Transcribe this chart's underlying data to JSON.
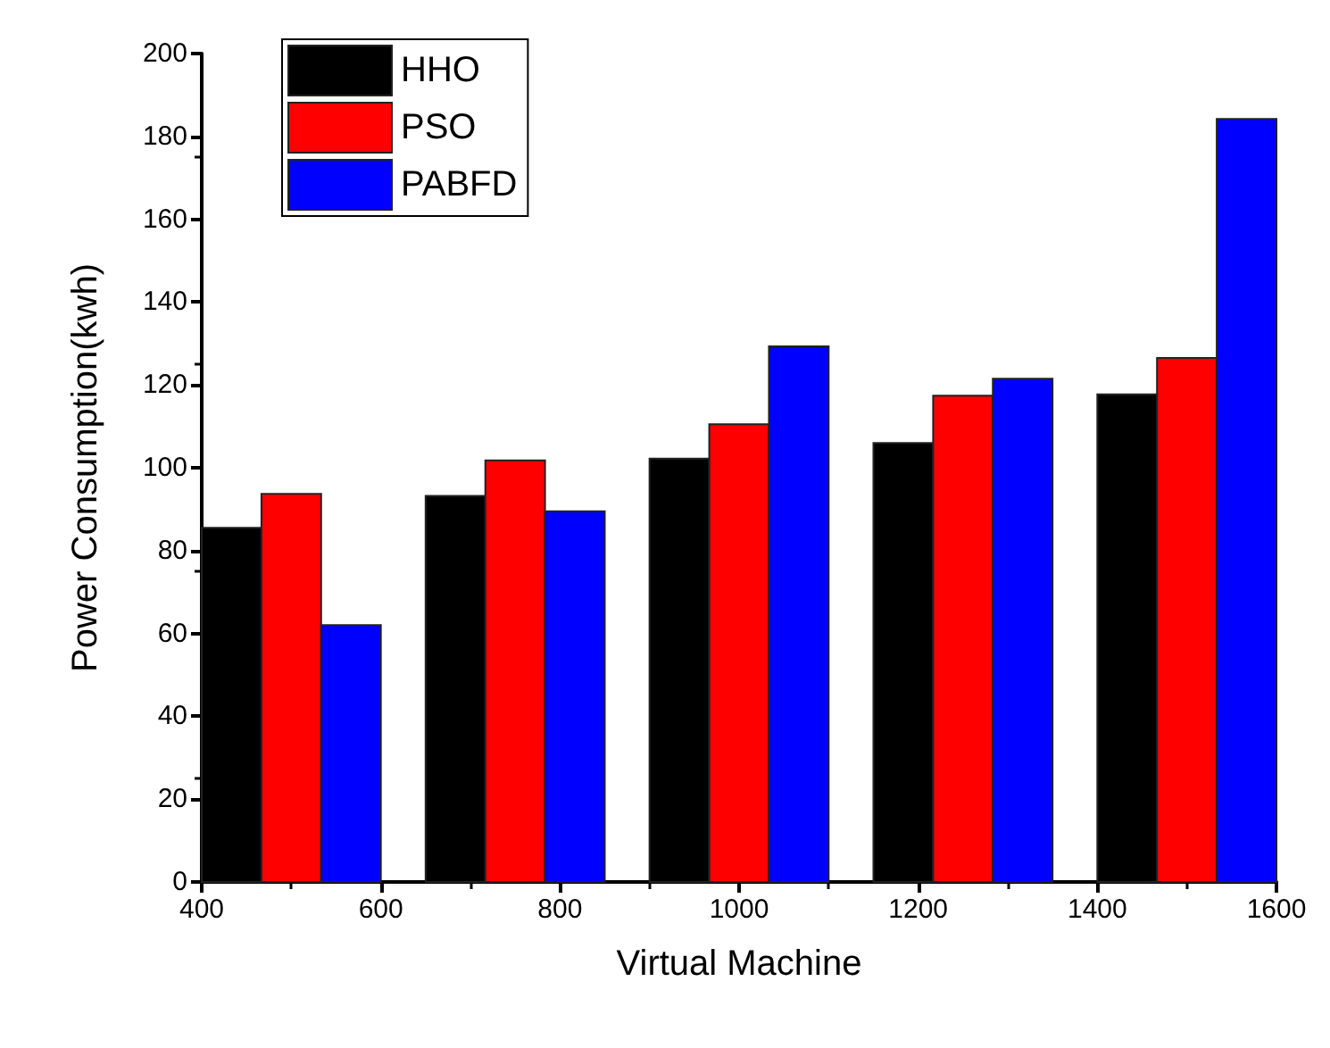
{
  "chart_data": {
    "type": "bar",
    "xlabel": "Virtual Machine",
    "ylabel": "Power Consumption(kwh)",
    "x": [
      500,
      750,
      1000,
      1250,
      1500
    ],
    "series": [
      {
        "name": "HHO",
        "color": "#000000",
        "values": [
          85.5,
          93.2,
          102.2,
          106,
          117.7
        ]
      },
      {
        "name": "PSO",
        "color": "#ff0000",
        "values": [
          93.7,
          101.8,
          110.5,
          117.4,
          126.5
        ]
      },
      {
        "name": "PABFD",
        "color": "#0000ff",
        "values": [
          62,
          89.5,
          129.3,
          121.5,
          184.2
        ]
      }
    ],
    "xlim": [
      400,
      1600
    ],
    "xticks": [
      400,
      600,
      800,
      1000,
      1200,
      1400,
      1600
    ],
    "ylim": [
      0,
      200
    ],
    "yticks": [
      0,
      20,
      40,
      60,
      80,
      100,
      120,
      140,
      160,
      180,
      200
    ],
    "grid": false,
    "legend": "top left"
  }
}
